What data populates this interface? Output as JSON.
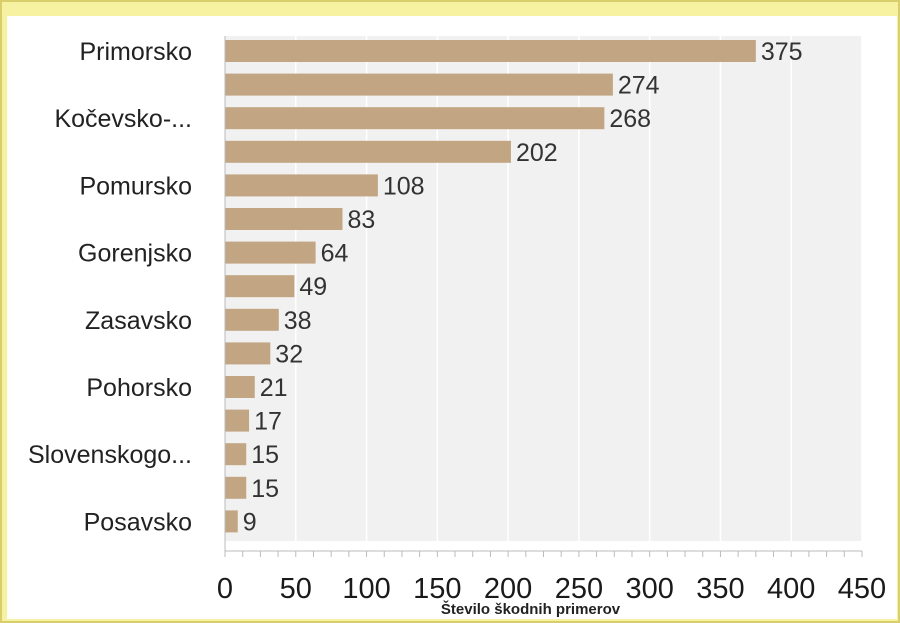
{
  "chart_data": {
    "type": "bar",
    "orientation": "horizontal",
    "categories": [
      "Primorsko",
      "",
      "Kočevsko-...",
      "",
      "Pomursko",
      "",
      "Gorenjsko",
      "",
      "Zasavsko",
      "",
      "Pohorsko",
      "",
      "Slovenskogo...",
      "",
      "Posavsko"
    ],
    "values": [
      375,
      274,
      268,
      202,
      108,
      83,
      64,
      49,
      38,
      32,
      21,
      17,
      15,
      15,
      9
    ],
    "xlabel": "Število škodnih primerov",
    "ylabel": "",
    "xlim": [
      0,
      450
    ],
    "xticks": [
      0,
      50,
      100,
      150,
      200,
      250,
      300,
      350,
      400,
      450
    ],
    "grid": true,
    "colors": {
      "bar": "#c2a582",
      "plot_bg": "#f1f1f1",
      "gridline": "#ffffff",
      "frame": "#f7f2a2"
    }
  }
}
